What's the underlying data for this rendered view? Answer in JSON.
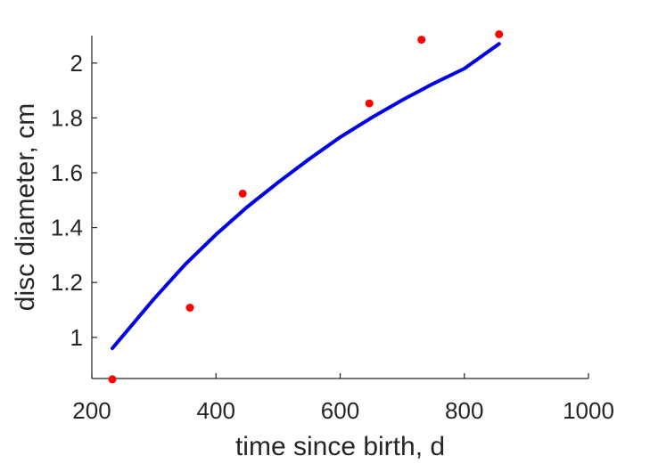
{
  "chart_data": {
    "type": "scatter",
    "title": "",
    "xlabel": "time since birth, d",
    "ylabel": "disc diameter, cm",
    "xlim": [
      200,
      1000
    ],
    "ylim": [
      0.85,
      2.1
    ],
    "xticks": [
      200,
      400,
      600,
      800,
      1000
    ],
    "yticks": [
      1,
      1.2,
      1.4,
      1.6,
      1.8,
      2
    ],
    "grid": false,
    "series": [
      {
        "kind": "points",
        "color": "#ff0000",
        "x": [
          233,
          358,
          443,
          647,
          731,
          856
        ],
        "y": [
          0.847,
          1.108,
          1.524,
          1.853,
          2.085,
          2.105
        ]
      },
      {
        "kind": "line",
        "color": "#0000e6",
        "x": [
          233,
          300,
          350,
          400,
          450,
          500,
          550,
          600,
          650,
          700,
          750,
          800,
          856
        ],
        "y": [
          0.96,
          1.14,
          1.265,
          1.375,
          1.475,
          1.565,
          1.65,
          1.73,
          1.8,
          1.865,
          1.925,
          1.98,
          2.07
        ]
      }
    ]
  }
}
